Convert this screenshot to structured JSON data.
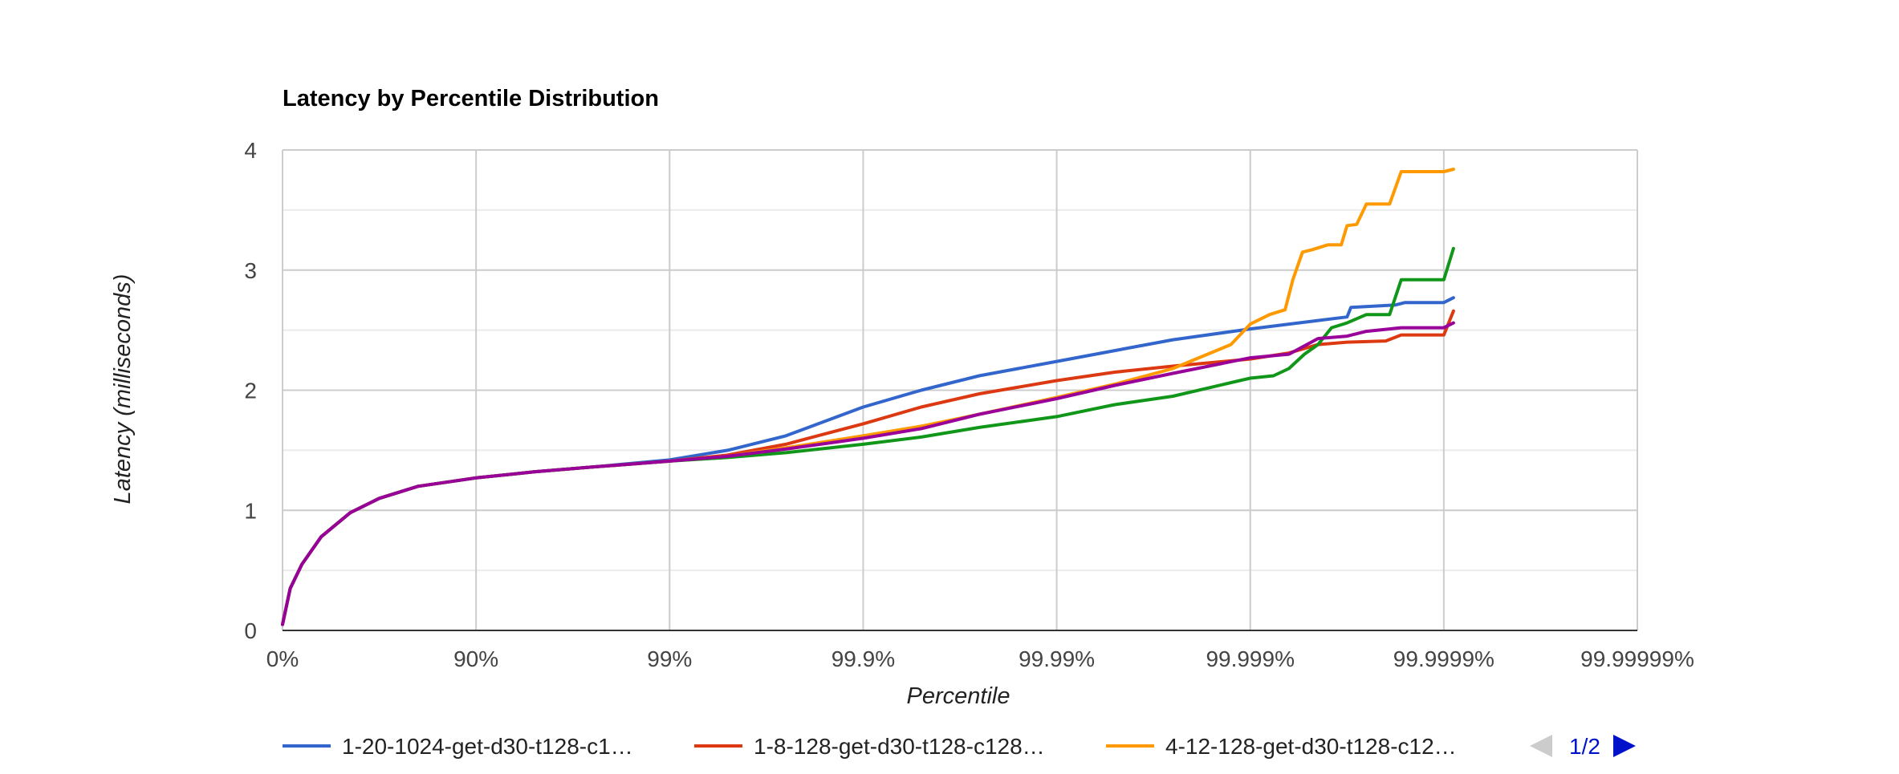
{
  "chart_data": {
    "type": "line",
    "title": "Latency by Percentile Distribution",
    "xlabel": "Percentile",
    "ylabel": "Latency (milliseconds)",
    "x_scale": "log-inverse-percentile",
    "x_ticks": [
      "0%",
      "90%",
      "99%",
      "99.9%",
      "99.99%",
      "99.999%",
      "99.9999%",
      "99.99999%"
    ],
    "y_ticks": [
      0,
      1,
      2,
      3,
      4
    ],
    "ylim": [
      0,
      4
    ],
    "grid": true,
    "legend_position": "bottom",
    "legend_visible": [
      "1-20-1024-get-d30-t128-c1…",
      "1-8-128-get-d30-t128-c128…",
      "4-12-128-get-d30-t128-c12…"
    ],
    "pager": "1/2",
    "series": [
      {
        "name": "1-20-1024-get-d30-t128-c1…",
        "color": "#3366cc",
        "points": [
          [
            0,
            0.05
          ],
          [
            0.04,
            0.35
          ],
          [
            0.1,
            0.55
          ],
          [
            0.2,
            0.78
          ],
          [
            0.35,
            0.98
          ],
          [
            0.5,
            1.1
          ],
          [
            0.7,
            1.2
          ],
          [
            1,
            1.27
          ],
          [
            1.3,
            1.32
          ],
          [
            1.6,
            1.36
          ],
          [
            2,
            1.42
          ],
          [
            2.3,
            1.5
          ],
          [
            2.6,
            1.62
          ],
          [
            3,
            1.86
          ],
          [
            3.3,
            2.0
          ],
          [
            3.6,
            2.12
          ],
          [
            4,
            2.24
          ],
          [
            4.3,
            2.33
          ],
          [
            4.6,
            2.42
          ],
          [
            5,
            2.51
          ],
          [
            5.2,
            2.55
          ],
          [
            5.35,
            2.58
          ],
          [
            5.5,
            2.61
          ],
          [
            5.52,
            2.69
          ],
          [
            5.75,
            2.71
          ],
          [
            5.8,
            2.73
          ],
          [
            6,
            2.73
          ],
          [
            6.05,
            2.77
          ]
        ]
      },
      {
        "name": "1-8-128-get-d30-t128-c128…",
        "color": "#dc3912",
        "points": [
          [
            0,
            0.05
          ],
          [
            0.04,
            0.35
          ],
          [
            0.1,
            0.55
          ],
          [
            0.2,
            0.78
          ],
          [
            0.35,
            0.98
          ],
          [
            0.5,
            1.1
          ],
          [
            0.7,
            1.2
          ],
          [
            1,
            1.27
          ],
          [
            1.3,
            1.32
          ],
          [
            1.6,
            1.36
          ],
          [
            2,
            1.41
          ],
          [
            2.3,
            1.46
          ],
          [
            2.6,
            1.55
          ],
          [
            3,
            1.72
          ],
          [
            3.3,
            1.86
          ],
          [
            3.6,
            1.97
          ],
          [
            4,
            2.08
          ],
          [
            4.3,
            2.15
          ],
          [
            4.6,
            2.2
          ],
          [
            5,
            2.26
          ],
          [
            5.2,
            2.31
          ],
          [
            5.35,
            2.38
          ],
          [
            5.5,
            2.4
          ],
          [
            5.7,
            2.41
          ],
          [
            5.78,
            2.46
          ],
          [
            6,
            2.46
          ],
          [
            6.05,
            2.66
          ]
        ]
      },
      {
        "name": "4-12-128-get-d30-t128-c12…",
        "color": "#ff9900",
        "points": [
          [
            0,
            0.05
          ],
          [
            0.04,
            0.35
          ],
          [
            0.1,
            0.55
          ],
          [
            0.2,
            0.78
          ],
          [
            0.35,
            0.98
          ],
          [
            0.5,
            1.1
          ],
          [
            0.7,
            1.2
          ],
          [
            1,
            1.27
          ],
          [
            1.3,
            1.32
          ],
          [
            1.6,
            1.36
          ],
          [
            2,
            1.41
          ],
          [
            2.3,
            1.45
          ],
          [
            2.6,
            1.52
          ],
          [
            3,
            1.62
          ],
          [
            3.3,
            1.7
          ],
          [
            3.6,
            1.8
          ],
          [
            4,
            1.94
          ],
          [
            4.3,
            2.05
          ],
          [
            4.6,
            2.18
          ],
          [
            4.9,
            2.38
          ],
          [
            5,
            2.55
          ],
          [
            5.1,
            2.63
          ],
          [
            5.18,
            2.67
          ],
          [
            5.22,
            2.92
          ],
          [
            5.27,
            3.15
          ],
          [
            5.32,
            3.17
          ],
          [
            5.4,
            3.21
          ],
          [
            5.47,
            3.21
          ],
          [
            5.5,
            3.37
          ],
          [
            5.55,
            3.38
          ],
          [
            5.6,
            3.55
          ],
          [
            5.72,
            3.55
          ],
          [
            5.78,
            3.82
          ],
          [
            6,
            3.82
          ],
          [
            6.05,
            3.84
          ]
        ]
      },
      {
        "name": "",
        "color": "#109618",
        "points": [
          [
            0,
            0.05
          ],
          [
            0.04,
            0.35
          ],
          [
            0.1,
            0.55
          ],
          [
            0.2,
            0.78
          ],
          [
            0.35,
            0.98
          ],
          [
            0.5,
            1.1
          ],
          [
            0.7,
            1.2
          ],
          [
            1,
            1.27
          ],
          [
            1.3,
            1.32
          ],
          [
            1.6,
            1.36
          ],
          [
            2,
            1.41
          ],
          [
            2.3,
            1.44
          ],
          [
            2.6,
            1.48
          ],
          [
            3,
            1.55
          ],
          [
            3.3,
            1.61
          ],
          [
            3.6,
            1.69
          ],
          [
            4,
            1.78
          ],
          [
            4.3,
            1.88
          ],
          [
            4.6,
            1.95
          ],
          [
            5,
            2.1
          ],
          [
            5.12,
            2.12
          ],
          [
            5.2,
            2.18
          ],
          [
            5.28,
            2.3
          ],
          [
            5.35,
            2.38
          ],
          [
            5.42,
            2.52
          ],
          [
            5.5,
            2.56
          ],
          [
            5.6,
            2.63
          ],
          [
            5.72,
            2.63
          ],
          [
            5.78,
            2.92
          ],
          [
            6,
            2.92
          ],
          [
            6.05,
            3.18
          ]
        ]
      },
      {
        "name": "",
        "color": "#990099",
        "points": [
          [
            0,
            0.05
          ],
          [
            0.04,
            0.35
          ],
          [
            0.1,
            0.55
          ],
          [
            0.2,
            0.78
          ],
          [
            0.35,
            0.98
          ],
          [
            0.5,
            1.1
          ],
          [
            0.7,
            1.2
          ],
          [
            1,
            1.27
          ],
          [
            1.3,
            1.32
          ],
          [
            1.6,
            1.36
          ],
          [
            2,
            1.41
          ],
          [
            2.3,
            1.45
          ],
          [
            2.6,
            1.51
          ],
          [
            3,
            1.6
          ],
          [
            3.3,
            1.68
          ],
          [
            3.6,
            1.8
          ],
          [
            4,
            1.93
          ],
          [
            4.3,
            2.04
          ],
          [
            4.6,
            2.14
          ],
          [
            5,
            2.27
          ],
          [
            5.2,
            2.3
          ],
          [
            5.35,
            2.43
          ],
          [
            5.5,
            2.45
          ],
          [
            5.6,
            2.49
          ],
          [
            5.78,
            2.52
          ],
          [
            6,
            2.52
          ],
          [
            6.05,
            2.56
          ]
        ]
      }
    ]
  }
}
